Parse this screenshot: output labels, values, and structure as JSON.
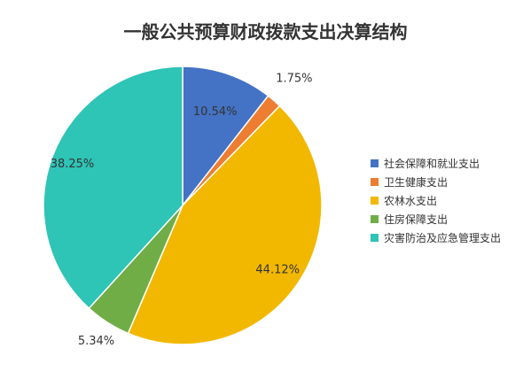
{
  "chart_data": {
    "type": "pie",
    "title": "一般公共预算财政拨款支出决算结构",
    "slices": [
      {
        "label": "社会保障和就业支出",
        "value": 10.54,
        "display": "10.54%",
        "color": "#4472C4"
      },
      {
        "label": "卫生健康支出",
        "value": 1.75,
        "display": "1.75%",
        "color": "#ED7D31"
      },
      {
        "label": "农林水支出",
        "value": 44.12,
        "display": "44.12%",
        "color": "#F2B800"
      },
      {
        "label": "住房保障支出",
        "value": 5.34,
        "display": "5.34%",
        "color": "#70AD47"
      },
      {
        "label": "灾害防治及应急管理支出",
        "value": 38.25,
        "display": "38.25%",
        "color": "#2EC4B6"
      }
    ],
    "legend_position": "right"
  }
}
